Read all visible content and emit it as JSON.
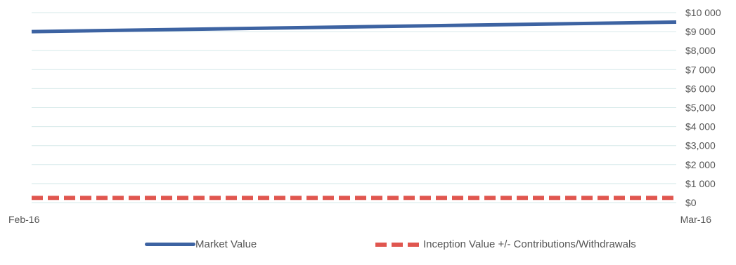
{
  "chart_data": {
    "type": "line",
    "title": "",
    "xlabel": "",
    "ylabel": "",
    "categories": [
      "Feb-16",
      "Mar-16"
    ],
    "ylim": [
      0,
      10000
    ],
    "y_ticks": [
      "$0",
      "$1 000",
      "$2 000",
      "$3,000",
      "$4 000",
      "$5,000",
      "$6 000",
      "$7 000",
      "$8,000",
      "$9 000",
      "$10 000"
    ],
    "grid": true,
    "legend_position": "bottom",
    "series": [
      {
        "name": "Market Value",
        "values": [
          9000,
          9500
        ],
        "color": "#3d63a2",
        "style": "solid"
      },
      {
        "name": "Inception Value +/- Contributions/Withdrawals",
        "values": [
          250,
          250
        ],
        "color": "#e0564f",
        "style": "dashed"
      }
    ]
  }
}
